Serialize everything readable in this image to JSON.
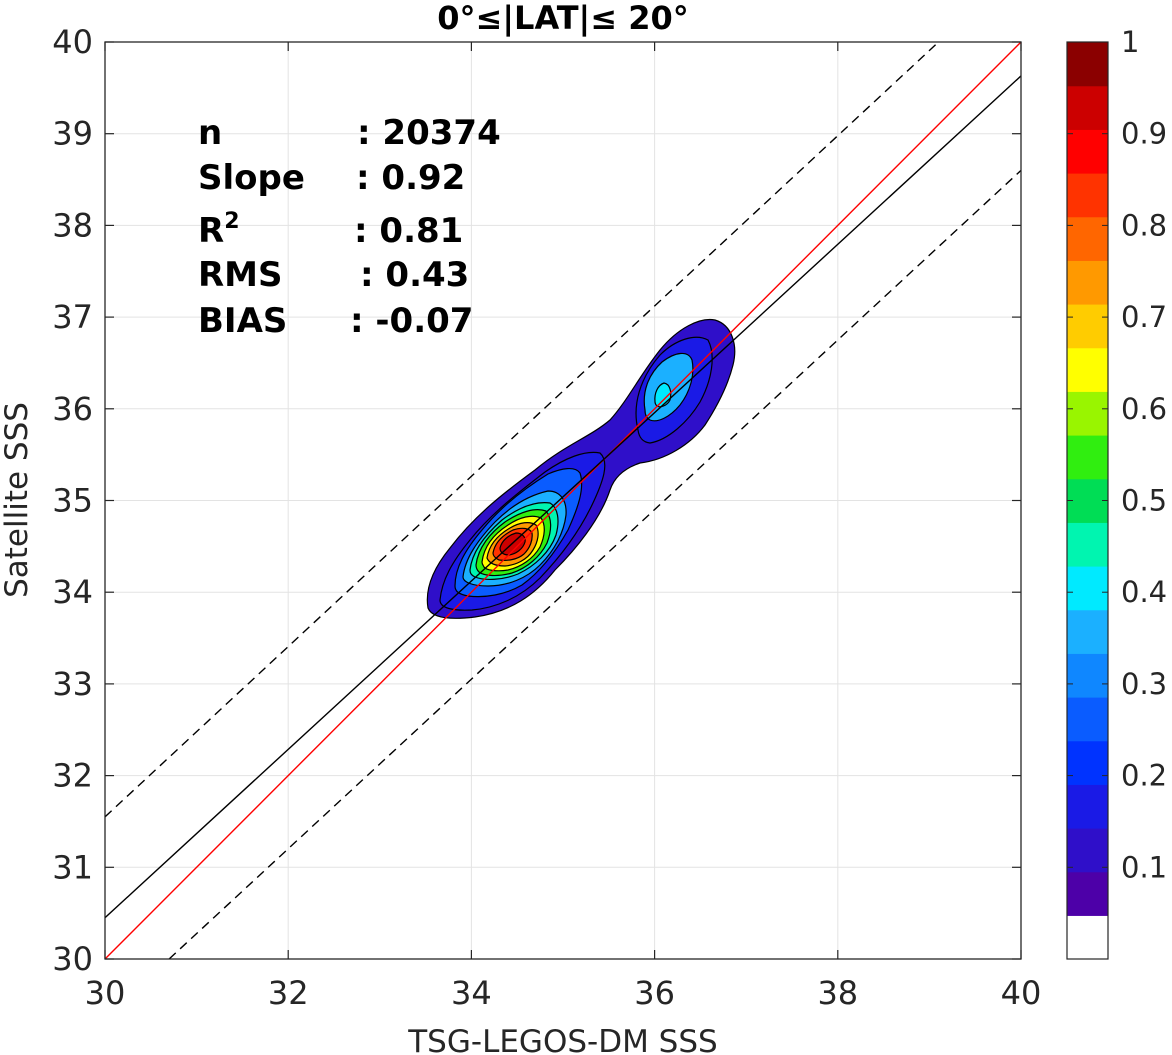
{
  "chart_data": {
    "type": "contour_density_scatter",
    "title": "0°≤|LAT|≤ 20°",
    "xlabel": "TSG-LEGOS-DM SSS",
    "ylabel": "Satellite SSS",
    "xlim": [
      30,
      40
    ],
    "ylim": [
      30,
      40
    ],
    "xticks": [
      "30",
      "32",
      "34",
      "36",
      "38",
      "40"
    ],
    "yticks": [
      "30",
      "31",
      "32",
      "33",
      "34",
      "35",
      "36",
      "37",
      "38",
      "39",
      "40"
    ],
    "grid": true,
    "stats": [
      {
        "label": "n",
        "value": ": 20374"
      },
      {
        "label": "Slope",
        "value": ": 0.92"
      },
      {
        "label": "R",
        "sup": "2",
        "value": ": 0.81"
      },
      {
        "label": "RMS",
        "value": ": 0.43"
      },
      {
        "label": "BIAS",
        "value": ": -0.07"
      }
    ],
    "lines": [
      {
        "name": "one-to-one",
        "color": "#ff0000",
        "style": "solid",
        "x": [
          30,
          40
        ],
        "y": [
          30,
          40
        ]
      },
      {
        "name": "regression",
        "color": "#000000",
        "style": "solid",
        "x": [
          30,
          40
        ],
        "y": [
          30.45,
          39.63
        ]
      },
      {
        "name": "upper-bound",
        "color": "#000000",
        "style": "dashed",
        "x": [
          30,
          39.1
        ],
        "y": [
          31.55,
          40
        ]
      },
      {
        "name": "lower-bound",
        "color": "#000000",
        "style": "dashed",
        "x": [
          30.7,
          40
        ],
        "y": [
          30,
          38.6
        ]
      }
    ],
    "density_peaks": [
      {
        "x": 34.5,
        "y": 34.55,
        "value": 1.0
      },
      {
        "x": 36.05,
        "y": 36.1,
        "value": 0.35
      }
    ],
    "colorbar": {
      "ticks": [
        "1",
        "0.9",
        "0.8",
        "0.7",
        "0.6",
        "0.5",
        "0.4",
        "0.3",
        "0.2",
        "0.1"
      ],
      "range": [
        0,
        1
      ],
      "colors": [
        "#ffffff",
        "#4d00a8",
        "#2f0fc9",
        "#1a1ae6",
        "#0033ff",
        "#0a5cff",
        "#0f87ff",
        "#1bb0ff",
        "#00eaff",
        "#00f5b0",
        "#00dd55",
        "#30ee10",
        "#99f500",
        "#ffff00",
        "#ffcc00",
        "#ff9900",
        "#ff6600",
        "#ff3300",
        "#ff0000",
        "#cc0000",
        "#8b0000"
      ]
    }
  }
}
